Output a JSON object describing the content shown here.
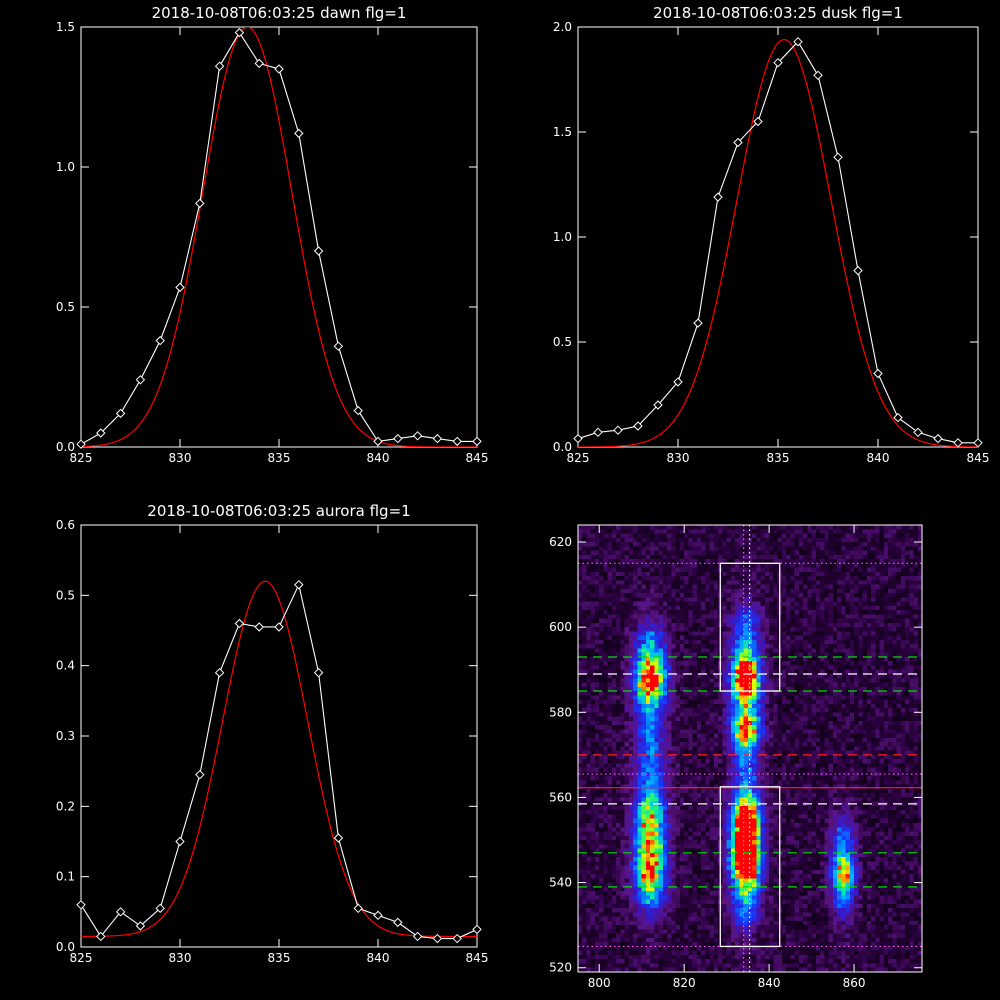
{
  "colors": {
    "background": "#000000",
    "axes": "#ffffff",
    "data_line": "#ffffff",
    "fit_line": "#ff0000",
    "green_dash": "#00dd00",
    "white_dash": "#ffffff",
    "red_dash": "#ff2020",
    "magenta_dot": "#ff55ff"
  },
  "chart_data": [
    {
      "type": "line",
      "title": "2018-10-08T06:03:25 dawn flg=1",
      "xlim": [
        825,
        845
      ],
      "ylim": [
        0,
        1.5
      ],
      "xticks": [
        825,
        830,
        835,
        840,
        845
      ],
      "yticks": [
        0.0,
        0.5,
        1.0,
        1.5
      ],
      "ytick_labels": [
        "0.0",
        "0.5",
        "1.0",
        "1.5"
      ],
      "series": [
        {
          "marker": "diamond",
          "x": [
            825,
            826,
            827,
            828,
            829,
            830,
            831,
            832,
            833,
            834,
            835,
            836,
            837,
            838,
            839,
            840,
            841,
            842,
            843,
            844,
            845
          ],
          "y": [
            0.01,
            0.05,
            0.12,
            0.24,
            0.38,
            0.57,
            0.87,
            1.36,
            1.48,
            1.37,
            1.35,
            1.12,
            0.7,
            0.36,
            0.13,
            0.02,
            0.03,
            0.04,
            0.03,
            0.02,
            0.02
          ]
        },
        {
          "kind": "gaussian_fit",
          "amp": 1.5,
          "center": 833.4,
          "sigma": 2.25,
          "offset": 0.0
        }
      ]
    },
    {
      "type": "line",
      "title": "2018-10-08T06:03:25 dusk flg=1",
      "xlim": [
        825,
        845
      ],
      "ylim": [
        0,
        2.0
      ],
      "xticks": [
        825,
        830,
        835,
        840,
        845
      ],
      "yticks": [
        0.0,
        0.5,
        1.0,
        1.5,
        2.0
      ],
      "ytick_labels": [
        "0.0",
        "0.5",
        "1.0",
        "1.5",
        "2.0"
      ],
      "series": [
        {
          "marker": "diamond",
          "x": [
            825,
            826,
            827,
            828,
            829,
            830,
            831,
            832,
            833,
            834,
            835,
            836,
            837,
            838,
            839,
            840,
            841,
            842,
            843,
            844,
            845
          ],
          "y": [
            0.04,
            0.07,
            0.08,
            0.1,
            0.2,
            0.31,
            0.59,
            1.19,
            1.45,
            1.55,
            1.83,
            1.93,
            1.77,
            1.38,
            0.84,
            0.35,
            0.14,
            0.07,
            0.04,
            0.02,
            0.02
          ]
        },
        {
          "kind": "gaussian_fit",
          "amp": 1.94,
          "center": 835.3,
          "sigma": 2.35,
          "offset": 0.0
        }
      ]
    },
    {
      "type": "line",
      "title": "2018-10-08T06:03:25 aurora flg=1",
      "xlim": [
        825,
        845
      ],
      "ylim": [
        0,
        0.6
      ],
      "xticks": [
        825,
        830,
        835,
        840,
        845
      ],
      "yticks": [
        0.0,
        0.1,
        0.2,
        0.3,
        0.4,
        0.5,
        0.6
      ],
      "ytick_labels": [
        "0.0",
        "0.1",
        "0.2",
        "0.3",
        "0.4",
        "0.5",
        "0.6"
      ],
      "series": [
        {
          "marker": "diamond",
          "x": [
            825,
            826,
            827,
            828,
            829,
            830,
            831,
            832,
            833,
            834,
            835,
            836,
            837,
            838,
            839,
            840,
            841,
            842,
            843,
            844,
            845
          ],
          "y": [
            0.06,
            0.015,
            0.05,
            0.03,
            0.055,
            0.15,
            0.245,
            0.39,
            0.46,
            0.455,
            0.455,
            0.515,
            0.39,
            0.155,
            0.055,
            0.045,
            0.035,
            0.015,
            0.012,
            0.012,
            0.025
          ]
        },
        {
          "kind": "gaussian_fit",
          "amp": 0.505,
          "center": 834.3,
          "sigma": 2.15,
          "offset": 0.015
        }
      ]
    },
    {
      "type": "heatmap",
      "title": "",
      "xlim": [
        795,
        876
      ],
      "ylim": [
        519,
        624
      ],
      "xticks": [
        800,
        820,
        840,
        860
      ],
      "yticks": [
        520,
        540,
        560,
        580,
        600,
        620
      ],
      "columns": [
        {
          "center": 812,
          "width": 2.6,
          "peaks": [
            {
              "y": 588,
              "h": 0.62,
              "s": 4
            },
            {
              "y": 544,
              "h": 0.5,
              "s": 5
            },
            {
              "y": 555,
              "h": 0.35,
              "s": 4
            }
          ],
          "ymin": 536,
          "ymax": 598
        },
        {
          "center": 834.5,
          "width": 2.4,
          "peaks": [
            {
              "y": 588,
              "h": 0.78,
              "s": 4
            },
            {
              "y": 546,
              "h": 0.92,
              "s": 5
            },
            {
              "y": 576,
              "h": 0.55,
              "s": 3
            },
            {
              "y": 555,
              "h": 0.55,
              "s": 4
            }
          ],
          "ymin": 532,
          "ymax": 602
        },
        {
          "center": 857.5,
          "width": 2.0,
          "peaks": [
            {
              "y": 542,
              "h": 0.42,
              "s": 3
            }
          ],
          "ymin": 535,
          "ymax": 552
        }
      ],
      "boxes": [
        {
          "x0": 828.5,
          "x1": 842.5,
          "y0": 585,
          "y1": 615
        },
        {
          "x0": 828.5,
          "x1": 842.5,
          "y0": 525,
          "y1": 562.5
        }
      ],
      "hlines": [
        {
          "y": 615,
          "color": "#ff55ff",
          "style": "dotted"
        },
        {
          "y": 593,
          "color": "#00dd00",
          "style": "dashed"
        },
        {
          "y": 589,
          "color": "#ffffff",
          "style": "dashed"
        },
        {
          "y": 585,
          "color": "#00dd00",
          "style": "dashed"
        },
        {
          "y": 570,
          "color": "#ff2020",
          "style": "dashed"
        },
        {
          "y": 565.5,
          "color": "#ff55ff",
          "style": "dotted"
        },
        {
          "y": 562.3,
          "color": "#ff2020",
          "style": "solid"
        },
        {
          "y": 558.5,
          "color": "#ffffff",
          "style": "dashed"
        },
        {
          "y": 547,
          "color": "#00dd00",
          "style": "dashed"
        },
        {
          "y": 539,
          "color": "#00dd00",
          "style": "dashed"
        },
        {
          "y": 525,
          "color": "#ff55ff",
          "style": "dotted"
        }
      ],
      "vlines": [
        {
          "x": 834,
          "color": "#ff55ff",
          "style": "dotted"
        },
        {
          "x": 835.4,
          "color": "#ffffff",
          "style": "dotted"
        }
      ]
    }
  ]
}
